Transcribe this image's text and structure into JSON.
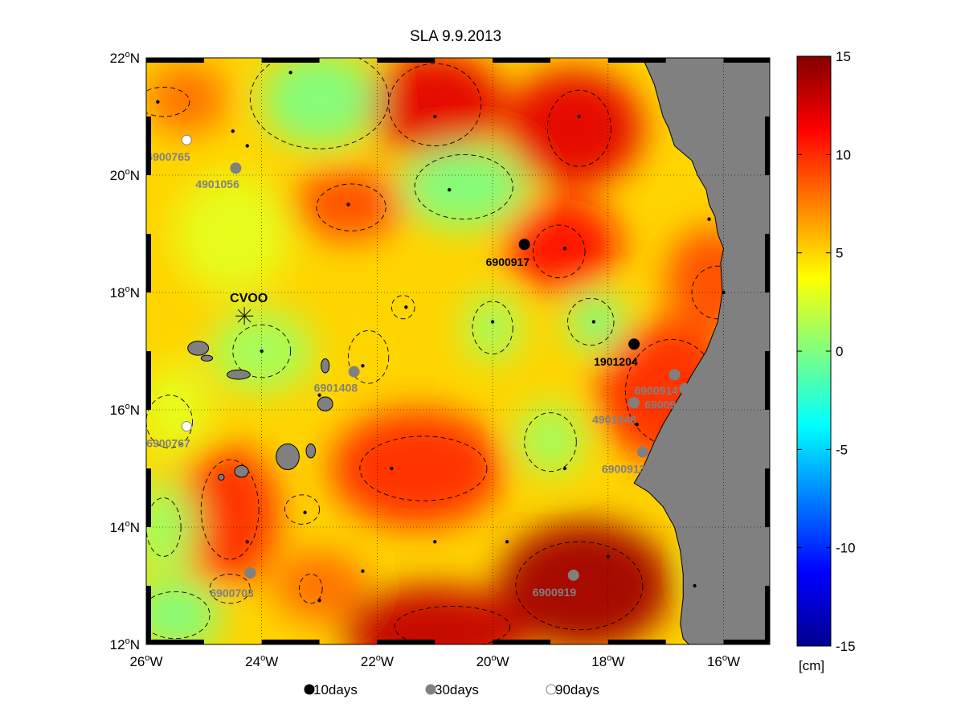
{
  "title": "SLA 9.9.2013",
  "axes": {
    "lon_ticks": [
      {
        "value": -26,
        "deg": "26",
        "hemi": "W"
      },
      {
        "value": -24,
        "deg": "24",
        "hemi": "W"
      },
      {
        "value": -22,
        "deg": "22",
        "hemi": "W"
      },
      {
        "value": -20,
        "deg": "20",
        "hemi": "W"
      },
      {
        "value": -18,
        "deg": "18",
        "hemi": "W"
      },
      {
        "value": -16,
        "deg": "16",
        "hemi": "W"
      }
    ],
    "lat_ticks": [
      {
        "value": 12,
        "deg": "12",
        "hemi": "N"
      },
      {
        "value": 14,
        "deg": "14",
        "hemi": "N"
      },
      {
        "value": 16,
        "deg": "16",
        "hemi": "N"
      },
      {
        "value": 18,
        "deg": "18",
        "hemi": "N"
      },
      {
        "value": 20,
        "deg": "20",
        "hemi": "N"
      },
      {
        "value": 22,
        "deg": "22",
        "hemi": "N"
      }
    ],
    "lon_range": [
      -26,
      -15.2
    ],
    "lat_range": [
      12,
      22
    ],
    "grid": "dotted"
  },
  "colorbar": {
    "ticks": [
      "15",
      "10",
      "5",
      "0",
      "-5",
      "-10",
      "-15"
    ],
    "range": [
      -15,
      15
    ],
    "unit": "[cm]",
    "colormap": "jet"
  },
  "station": {
    "label": "CVOO",
    "lon": -24.3,
    "lat": 17.6
  },
  "floats": [
    {
      "id": "6900917",
      "lon": -19.45,
      "lat": 18.82,
      "age": "10days",
      "label_dx": -48,
      "label_dy": 27
    },
    {
      "id": "1901204",
      "lon": -17.55,
      "lat": 17.12,
      "age": "10days",
      "label_dx": -50,
      "label_dy": 27
    },
    {
      "id": "4901056",
      "lon": -24.45,
      "lat": 20.12,
      "age": "30days",
      "label_dx": -50,
      "label_dy": 25
    },
    {
      "id": "6901408",
      "lon": -22.4,
      "lat": 16.65,
      "age": "30days",
      "label_dx": -50,
      "label_dy": 25
    },
    {
      "id": "6900703",
      "lon": -24.2,
      "lat": 13.22,
      "age": "30days",
      "label_dx": -50,
      "label_dy": 30
    },
    {
      "id": "6900919",
      "lon": -18.6,
      "lat": 13.18,
      "age": "30days",
      "label_dx": -51,
      "label_dy": 26
    },
    {
      "id": "6900914",
      "lon": -16.85,
      "lat": 16.6,
      "age": "30days",
      "label_dx": -50,
      "label_dy": 25
    },
    {
      "id": "6900918",
      "lon": -16.67,
      "lat": 16.36,
      "age": "30days",
      "label_dx": -50,
      "label_dy": 25
    },
    {
      "id": "4901048",
      "lon": -17.55,
      "lat": 16.12,
      "age": "30days",
      "label_dx": -52,
      "label_dy": 26
    },
    {
      "id": "6900913",
      "lon": -17.4,
      "lat": 15.28,
      "age": "30days",
      "label_dx": -51,
      "label_dy": 26
    },
    {
      "id": "6900765",
      "lon": -25.3,
      "lat": 20.6,
      "age": "90days",
      "label_dx": -50,
      "label_dy": 26
    },
    {
      "id": "6900767",
      "lon": -25.3,
      "lat": 15.72,
      "age": "90days",
      "label_dx": -50,
      "label_dy": 26
    }
  ],
  "legend": [
    {
      "marker": "filled-black",
      "label": "10days"
    },
    {
      "marker": "filled-gray",
      "label": "30days"
    },
    {
      "marker": "open-gray",
      "label": "90days"
    }
  ],
  "colors": {
    "land": "#808080",
    "float_10days": "#000000",
    "float_30days": "#808080",
    "float_90days": "#808080"
  },
  "sla_features": [
    {
      "lon": -21.0,
      "lat": 21.2,
      "value": 12,
      "sx": 1.2,
      "sy": 0.9
    },
    {
      "lon": -18.6,
      "lat": 20.8,
      "value": 12,
      "sx": 1.2,
      "sy": 1.0
    },
    {
      "lon": -18.8,
      "lat": 18.8,
      "value": 11,
      "sx": 1.0,
      "sy": 0.8
    },
    {
      "lon": -17.0,
      "lat": 16.3,
      "value": 10,
      "sx": 1.2,
      "sy": 1.2
    },
    {
      "lon": -21.3,
      "lat": 15.0,
      "value": 10,
      "sx": 1.5,
      "sy": 1.0
    },
    {
      "lon": -18.4,
      "lat": 13.0,
      "value": 14,
      "sx": 1.5,
      "sy": 1.1
    },
    {
      "lon": -21.0,
      "lat": 12.2,
      "value": 13,
      "sx": 1.6,
      "sy": 0.8
    },
    {
      "lon": -16.2,
      "lat": 18.2,
      "value": 9,
      "sx": 0.8,
      "sy": 0.9
    },
    {
      "lon": -22.5,
      "lat": 19.5,
      "value": 9,
      "sx": 1.0,
      "sy": 0.6
    },
    {
      "lon": -24.6,
      "lat": 14.2,
      "value": 10,
      "sx": 0.9,
      "sy": 1.2
    },
    {
      "lon": -25.3,
      "lat": 21.3,
      "value": 8,
      "sx": 0.7,
      "sy": 0.6
    },
    {
      "lon": -23.0,
      "lat": 13.0,
      "value": 8,
      "sx": 0.8,
      "sy": 0.6
    },
    {
      "lon": -23.0,
      "lat": 21.3,
      "value": 0,
      "sx": 1.0,
      "sy": 0.8
    },
    {
      "lon": -20.5,
      "lat": 19.8,
      "value": 0,
      "sx": 1.1,
      "sy": 0.7
    },
    {
      "lon": -24.0,
      "lat": 17.0,
      "value": 1,
      "sx": 0.9,
      "sy": 0.7
    },
    {
      "lon": -20.0,
      "lat": 17.4,
      "value": 1,
      "sx": 0.5,
      "sy": 0.6
    },
    {
      "lon": -18.2,
      "lat": 17.5,
      "value": 0,
      "sx": 0.5,
      "sy": 0.5
    },
    {
      "lon": -19.0,
      "lat": 15.5,
      "value": 1,
      "sx": 0.6,
      "sy": 0.6
    },
    {
      "lon": -25.7,
      "lat": 14.0,
      "value": 1,
      "sx": 0.6,
      "sy": 0.8
    },
    {
      "lon": -25.5,
      "lat": 12.5,
      "value": 0,
      "sx": 0.8,
      "sy": 0.6
    },
    {
      "lon": -16.0,
      "lat": 13.3,
      "value": 0,
      "sx": 0.4,
      "sy": 0.4
    },
    {
      "lon": -24.5,
      "lat": 19.0,
      "value": 3,
      "sx": 1.0,
      "sy": 1.0
    },
    {
      "lon": -25.5,
      "lat": 16.0,
      "value": 3,
      "sx": 0.6,
      "sy": 0.8
    }
  ],
  "sla_background": 5,
  "extrema": [
    {
      "lon": -25.8,
      "lat": 21.25
    },
    {
      "lon": -23.5,
      "lat": 21.75
    },
    {
      "lon": -21.0,
      "lat": 21.0
    },
    {
      "lon": -18.5,
      "lat": 21.0
    },
    {
      "lon": -24.5,
      "lat": 20.75
    },
    {
      "lon": -24.25,
      "lat": 20.5
    },
    {
      "lon": -20.75,
      "lat": 19.75
    },
    {
      "lon": -22.5,
      "lat": 19.5
    },
    {
      "lon": -18.75,
      "lat": 18.75
    },
    {
      "lon": -16.25,
      "lat": 19.25
    },
    {
      "lon": -21.5,
      "lat": 17.75
    },
    {
      "lon": -20.0,
      "lat": 17.5
    },
    {
      "lon": -18.25,
      "lat": 17.5
    },
    {
      "lon": -16.0,
      "lat": 18.0
    },
    {
      "lon": -24.0,
      "lat": 17.0
    },
    {
      "lon": -22.25,
      "lat": 16.75
    },
    {
      "lon": -23.0,
      "lat": 16.25
    },
    {
      "lon": -17.5,
      "lat": 15.75
    },
    {
      "lon": -21.75,
      "lat": 15.0
    },
    {
      "lon": -18.75,
      "lat": 15.0
    },
    {
      "lon": -23.25,
      "lat": 14.25
    },
    {
      "lon": -24.25,
      "lat": 13.75
    },
    {
      "lon": -21.0,
      "lat": 13.75
    },
    {
      "lon": -19.75,
      "lat": 13.75
    },
    {
      "lon": -18.0,
      "lat": 13.5
    },
    {
      "lon": -22.25,
      "lat": 13.25
    },
    {
      "lon": -23.0,
      "lat": 12.75
    },
    {
      "lon": -16.5,
      "lat": 13.0
    },
    {
      "lon": -21.25,
      "lat": 12.0
    }
  ],
  "contours_zero": [
    {
      "lon": -23.0,
      "lat": 21.3,
      "rx": 1.2,
      "ry": 0.85
    },
    {
      "lon": -20.5,
      "lat": 19.8,
      "rx": 0.85,
      "ry": 0.55
    },
    {
      "lon": -24.0,
      "lat": 17.0,
      "rx": 0.5,
      "ry": 0.45
    },
    {
      "lon": -20.0,
      "lat": 17.4,
      "rx": 0.35,
      "ry": 0.45
    },
    {
      "lon": -18.3,
      "lat": 17.5,
      "rx": 0.4,
      "ry": 0.4
    },
    {
      "lon": -19.0,
      "lat": 15.45,
      "rx": 0.45,
      "ry": 0.5
    },
    {
      "lon": -25.7,
      "lat": 14.0,
      "rx": 0.3,
      "ry": 0.5
    },
    {
      "lon": -25.5,
      "lat": 12.5,
      "rx": 0.6,
      "ry": 0.4
    }
  ],
  "contours_ten": [
    {
      "lon": -21.0,
      "lat": 21.2,
      "rx": 0.8,
      "ry": 0.7
    },
    {
      "lon": -18.5,
      "lat": 20.8,
      "rx": 0.55,
      "ry": 0.65
    },
    {
      "lon": -18.85,
      "lat": 18.7,
      "rx": 0.45,
      "ry": 0.45
    },
    {
      "lon": -22.45,
      "lat": 19.45,
      "rx": 0.6,
      "ry": 0.4
    },
    {
      "lon": -21.2,
      "lat": 15.0,
      "rx": 1.1,
      "ry": 0.55
    },
    {
      "lon": -18.5,
      "lat": 13.0,
      "rx": 1.1,
      "ry": 0.75
    },
    {
      "lon": -20.7,
      "lat": 12.3,
      "rx": 1.0,
      "ry": 0.35
    },
    {
      "lon": -16.9,
      "lat": 16.3,
      "rx": 0.8,
      "ry": 0.9
    },
    {
      "lon": -24.55,
      "lat": 14.3,
      "rx": 0.5,
      "ry": 0.85
    },
    {
      "lon": -16.1,
      "lat": 18.0,
      "rx": 0.45,
      "ry": 0.45
    },
    {
      "lon": -23.15,
      "lat": 12.95,
      "rx": 0.2,
      "ry": 0.25
    },
    {
      "lon": -23.3,
      "lat": 14.3,
      "rx": 0.3,
      "ry": 0.25
    },
    {
      "lon": -22.15,
      "lat": 16.9,
      "rx": 0.35,
      "ry": 0.45
    },
    {
      "lon": -21.55,
      "lat": 17.75,
      "rx": 0.2,
      "ry": 0.2
    },
    {
      "lon": -24.55,
      "lat": 12.95,
      "rx": 0.35,
      "ry": 0.25
    },
    {
      "lon": -25.7,
      "lat": 21.25,
      "rx": 0.45,
      "ry": 0.25
    },
    {
      "lon": -25.6,
      "lat": 15.8,
      "rx": 0.4,
      "ry": 0.45
    }
  ],
  "coast": [
    [
      -17.4,
      22.0
    ],
    [
      -17.2,
      21.55
    ],
    [
      -17.05,
      21.0
    ],
    [
      -16.95,
      20.8
    ],
    [
      -16.85,
      20.5
    ],
    [
      -16.55,
      20.25
    ],
    [
      -16.45,
      20.0
    ],
    [
      -16.3,
      19.75
    ],
    [
      -16.25,
      19.5
    ],
    [
      -16.15,
      19.3
    ],
    [
      -16.1,
      19.0
    ],
    [
      -16.0,
      18.75
    ],
    [
      -16.05,
      18.5
    ],
    [
      -16.02,
      18.0
    ],
    [
      -16.1,
      17.5
    ],
    [
      -16.3,
      17.0
    ],
    [
      -16.55,
      16.6
    ],
    [
      -16.75,
      16.25
    ],
    [
      -16.9,
      16.0
    ],
    [
      -17.05,
      15.75
    ],
    [
      -17.2,
      15.45
    ],
    [
      -17.4,
      15.0
    ],
    [
      -17.55,
      14.75
    ],
    [
      -17.3,
      14.6
    ],
    [
      -17.05,
      14.35
    ],
    [
      -16.85,
      14.0
    ],
    [
      -16.75,
      13.6
    ],
    [
      -16.7,
      13.2
    ],
    [
      -16.7,
      12.8
    ],
    [
      -16.75,
      12.35
    ],
    [
      -16.7,
      12.1
    ],
    [
      -16.6,
      12.0
    ]
  ],
  "islands": [
    {
      "lon": -25.1,
      "lat": 17.05,
      "rx": 0.18,
      "ry": 0.12
    },
    {
      "lon": -24.95,
      "lat": 16.88,
      "rx": 0.1,
      "ry": 0.05
    },
    {
      "lon": -24.4,
      "lat": 16.6,
      "rx": 0.2,
      "ry": 0.08
    },
    {
      "lon": -22.9,
      "lat": 16.75,
      "rx": 0.07,
      "ry": 0.12
    },
    {
      "lon": -22.9,
      "lat": 16.1,
      "rx": 0.13,
      "ry": 0.12
    },
    {
      "lon": -23.55,
      "lat": 15.2,
      "rx": 0.2,
      "ry": 0.22
    },
    {
      "lon": -23.15,
      "lat": 15.3,
      "rx": 0.08,
      "ry": 0.12
    },
    {
      "lon": -24.35,
      "lat": 14.95,
      "rx": 0.12,
      "ry": 0.1
    },
    {
      "lon": -24.7,
      "lat": 14.85,
      "rx": 0.05,
      "ry": 0.05
    }
  ]
}
